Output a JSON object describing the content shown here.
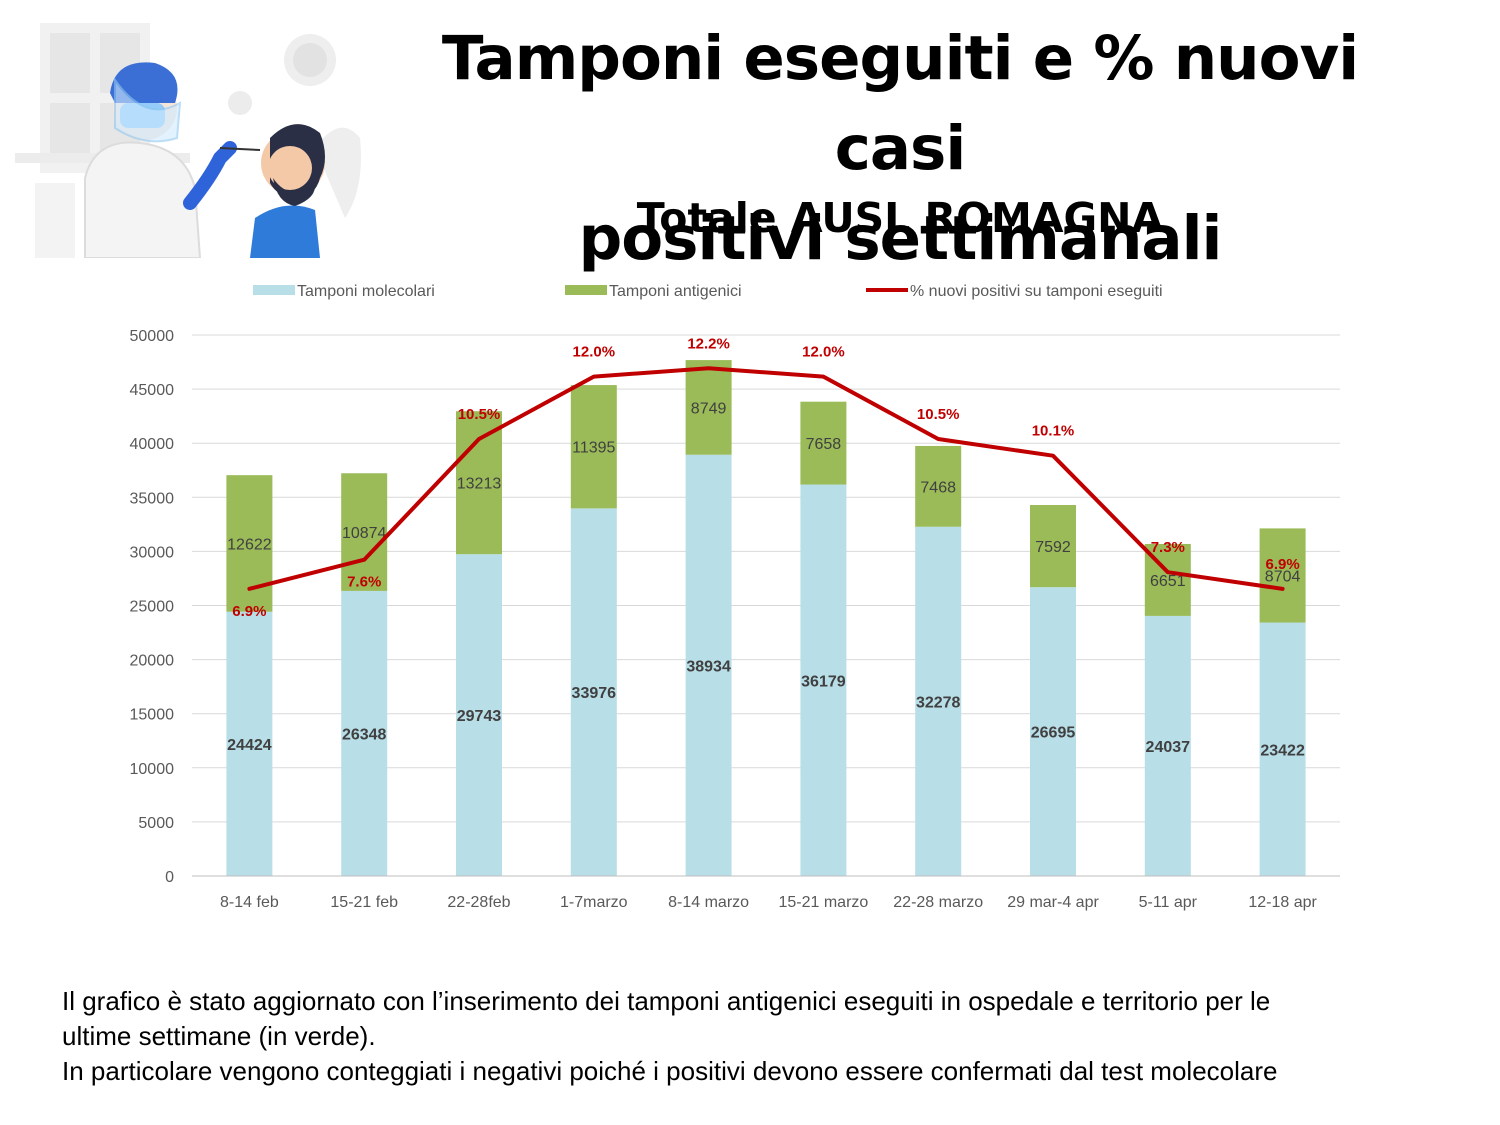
{
  "header": {
    "title_line1": "Tamponi eseguiti e % nuovi casi",
    "title_line2": "positivi settimanali",
    "subtitle": "Totale AUSL ROMAGNA"
  },
  "illustration": {
    "icon": "swab-test-illustration-icon"
  },
  "chart_data": {
    "type": "bar",
    "stacked": true,
    "categories": [
      "8-14 feb",
      "15-21 feb",
      "22-28feb",
      "1-7marzo",
      "8-14 marzo",
      "15-21 marzo",
      "22-28 marzo",
      "29 mar-4 apr",
      "5-11 apr",
      "12-18 apr"
    ],
    "series": [
      {
        "name": "Tamponi molecolari",
        "type": "bar",
        "color": "#b8dee8",
        "values": [
          24424,
          26348,
          29743,
          33976,
          38934,
          36179,
          32278,
          26695,
          24037,
          23422
        ]
      },
      {
        "name": "Tamponi antigenici",
        "type": "bar",
        "color": "#9bbb59",
        "values": [
          12622,
          10874,
          13213,
          11395,
          8749,
          7658,
          7468,
          7592,
          6651,
          8704
        ]
      },
      {
        "name": "% nuovi positivi su tamponi eseguiti",
        "type": "line",
        "color": "#c00000",
        "values": [
          6.9,
          7.6,
          10.5,
          12.0,
          12.2,
          12.0,
          10.5,
          10.1,
          7.3,
          6.9
        ],
        "labels": [
          "6.9%",
          "7.6%",
          "10.5%",
          "12.0%",
          "12.2%",
          "12.0%",
          "10.5%",
          "10.1%",
          "7.3%",
          "6.9%"
        ]
      }
    ],
    "y_ticks": [
      "0",
      "5000",
      "10000",
      "15000",
      "20000",
      "25000",
      "30000",
      "35000",
      "40000",
      "45000",
      "50000"
    ],
    "ylim": [
      0,
      50000
    ],
    "percent_ylim": [
      0,
      13
    ],
    "legend_position": "top",
    "grid": true
  },
  "note": {
    "line1": "Il grafico è stato aggiornato con l’inserimento dei tamponi antigenici eseguiti in ospedale e territorio per le",
    "line2": "ultime settimane (in verde).",
    "line3": "In particolare vengono conteggiati i negativi poiché i positivi devono essere confermati dal test molecolare"
  }
}
